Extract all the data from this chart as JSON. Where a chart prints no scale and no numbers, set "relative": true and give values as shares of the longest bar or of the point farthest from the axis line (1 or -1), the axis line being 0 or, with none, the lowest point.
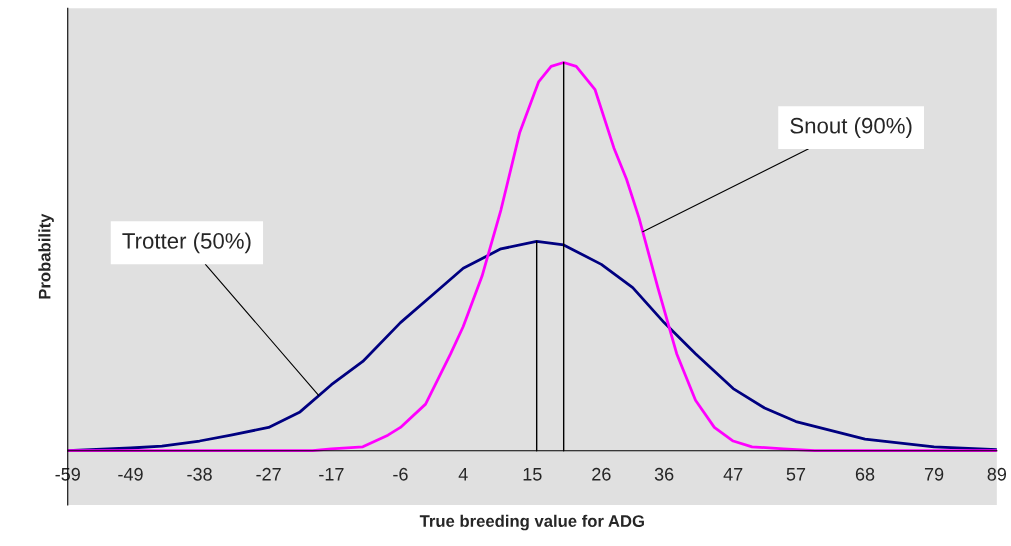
{
  "chart_data": {
    "type": "line",
    "relative": true,
    "xlabel": "True breeding value for ADG",
    "ylabel": "Probability",
    "xlim": [
      -59,
      89
    ],
    "xticks": [
      -59,
      -49,
      -38,
      -27,
      -17,
      -6,
      4,
      15,
      26,
      36,
      47,
      57,
      68,
      79,
      89
    ],
    "grid": false,
    "legend": false,
    "marker": "none",
    "line_style": "solid",
    "series": [
      {
        "color": "#000080",
        "x": [
          -59,
          -49,
          -44,
          -38,
          -33,
          -27,
          -22,
          -17,
          -12,
          -6,
          -1,
          4,
          10,
          15.7,
          20,
          26,
          31,
          36,
          41,
          47,
          52,
          57,
          68,
          79,
          89
        ],
        "values": [
          0,
          0.007,
          0.012,
          0.025,
          0.04,
          0.06,
          0.1,
          0.17,
          0.23,
          0.33,
          0.4,
          0.47,
          0.52,
          0.539,
          0.53,
          0.48,
          0.42,
          0.33,
          0.25,
          0.16,
          0.11,
          0.075,
          0.03,
          0.01,
          0.003
        ]
      },
      {
        "color": "#ff00ff",
        "x": [
          -59,
          -20,
          -17,
          -12,
          -8,
          -6,
          -2,
          2,
          4,
          7,
          10,
          13,
          16,
          18,
          20,
          22,
          25,
          28,
          30,
          32,
          35,
          38,
          41,
          44,
          47,
          50,
          55,
          60,
          89
        ],
        "values": [
          0,
          0,
          0.005,
          0.01,
          0.04,
          0.06,
          0.12,
          0.25,
          0.32,
          0.45,
          0.62,
          0.82,
          0.95,
          0.99,
          1,
          0.99,
          0.93,
          0.78,
          0.7,
          0.6,
          0.42,
          0.25,
          0.13,
          0.06,
          0.025,
          0.01,
          0.005,
          0,
          0
        ]
      },
      {
        "color": "#000000",
        "x": [
          15.7,
          15.7
        ],
        "values": [
          0,
          0.539
        ]
      },
      {
        "color": "#000000",
        "x": [
          20,
          20
        ],
        "values": [
          0,
          1
        ]
      }
    ],
    "annotations": [
      {
        "text": "Trotter (50%)",
        "x": -19,
        "y": 0.142
      },
      {
        "text": "Snout (90%)",
        "x": 32.6,
        "y": 0.564
      }
    ]
  }
}
